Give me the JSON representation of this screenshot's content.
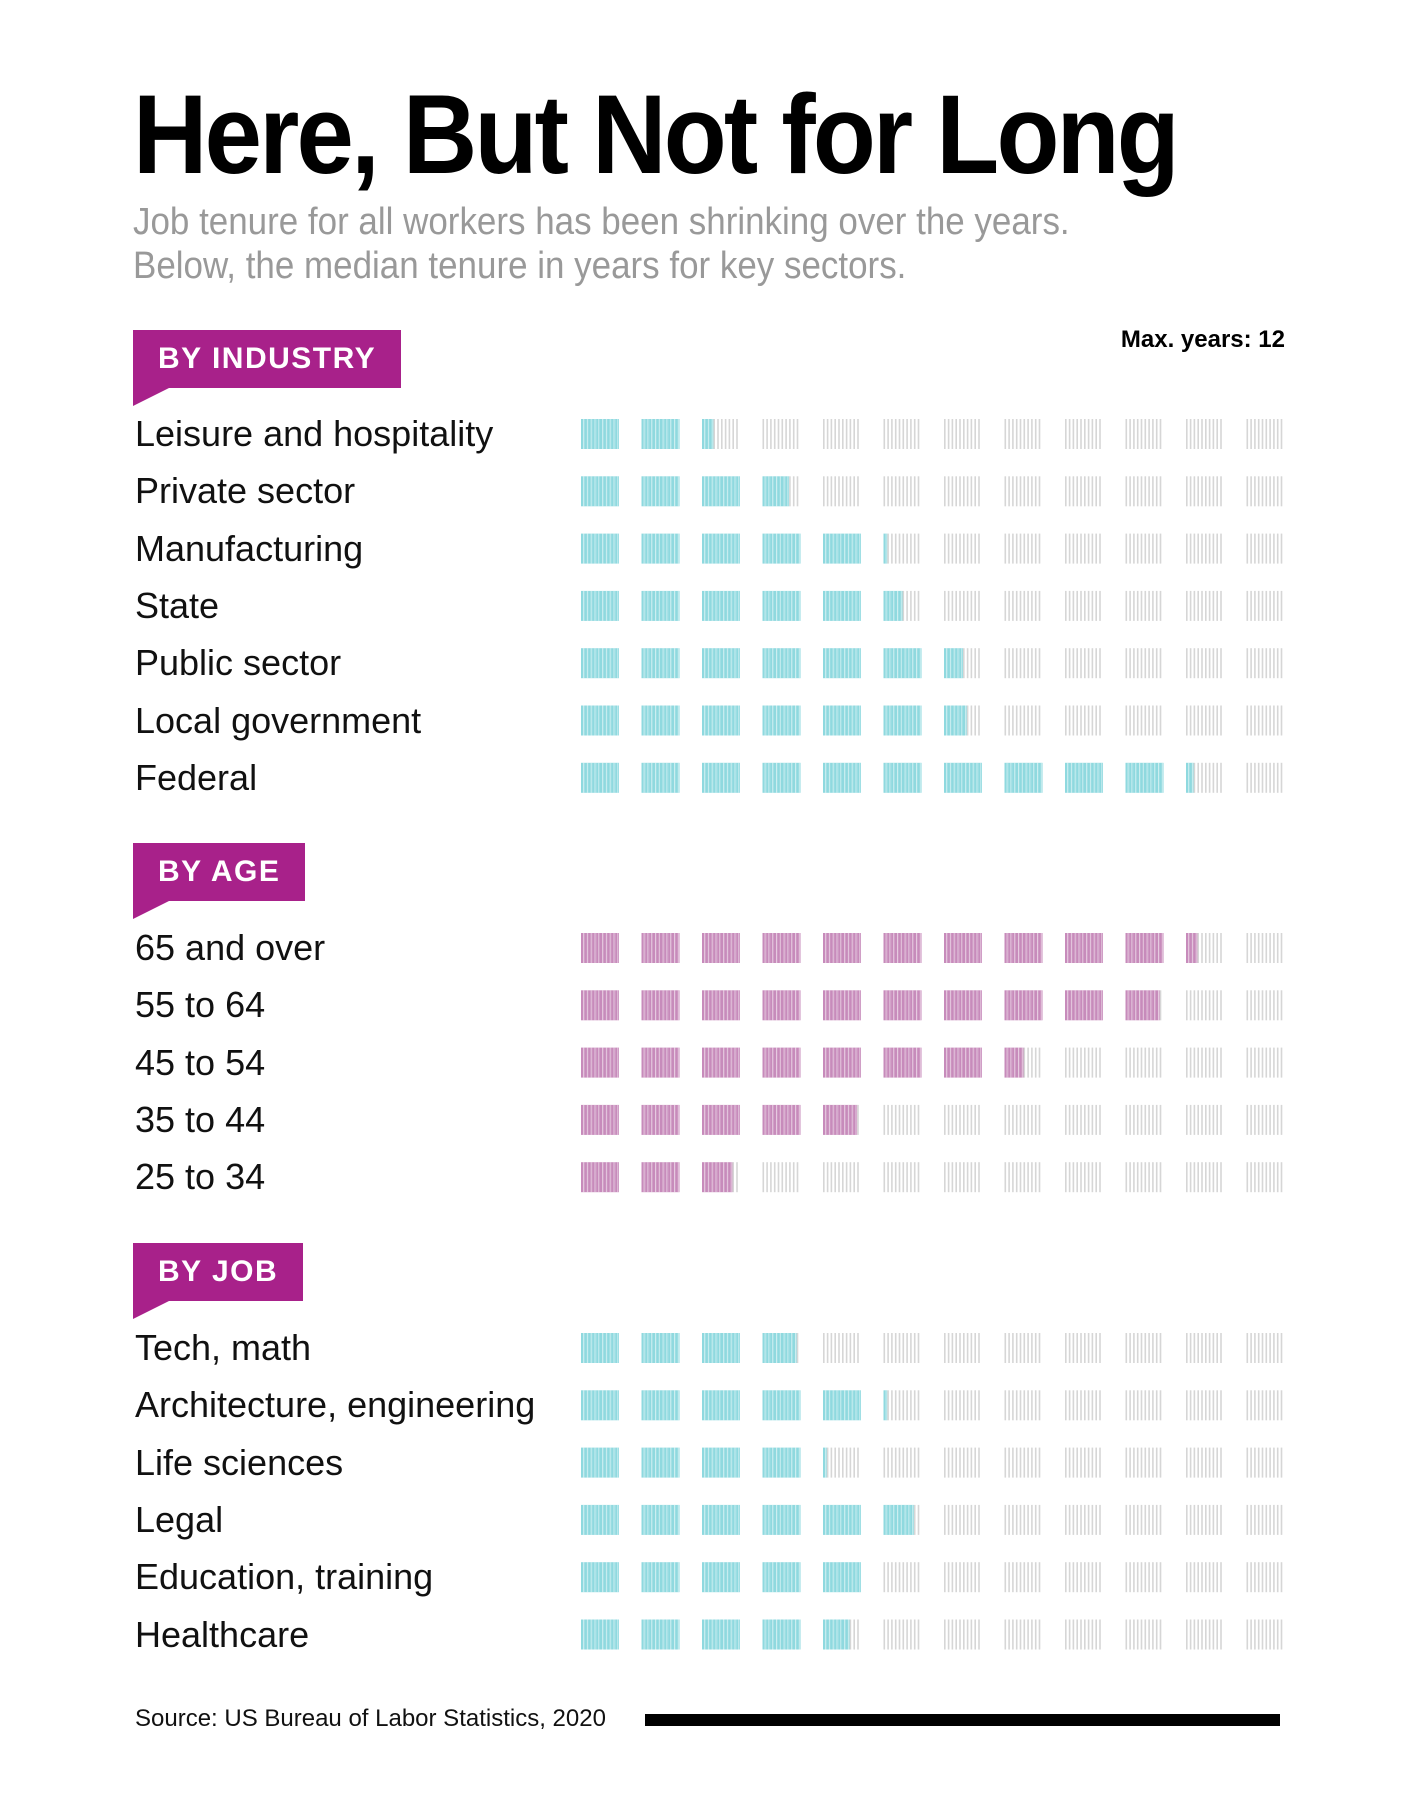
{
  "title": "Here, But Not for Long",
  "subtitle_line1": "Job tenure for all workers has been shrinking over the years.",
  "subtitle_line2": "Below, the median tenure in years for key sectors.",
  "max_label": "Max. years: 12",
  "source": "Source: US Bureau of Labor Statistics, 2020",
  "colors": {
    "industry": "#8fd9df",
    "age": "#c78bbb",
    "job": "#8fd9df",
    "empty": "#d6d6d6",
    "badge": "#a8218a"
  },
  "chart_data": {
    "type": "bar",
    "title": "Here, But Not for Long",
    "subtitle": "Median job tenure in years for key sectors",
    "max_years": 12,
    "unit": "years",
    "groups": [
      {
        "name": "BY INDUSTRY",
        "color_key": "industry",
        "categories": [
          "Leisure and hospitality",
          "Private sector",
          "Manufacturing",
          "State",
          "Public sector",
          "Local government",
          "Federal"
        ],
        "values": [
          2.3,
          3.7,
          5.1,
          5.5,
          6.5,
          6.6,
          10.2
        ]
      },
      {
        "name": "BY AGE",
        "color_key": "age",
        "categories": [
          "65 and over",
          "55 to 64",
          "45 to 54",
          "35 to 44",
          "25 to 34"
        ],
        "values": [
          10.3,
          9.9,
          7.5,
          4.9,
          2.8
        ]
      },
      {
        "name": "BY JOB",
        "color_key": "job",
        "categories": [
          "Tech, math",
          "Architecture, engineering",
          "Life sciences",
          "Legal",
          "Education, training",
          "Healthcare"
        ],
        "values": [
          3.9,
          5.1,
          4.1,
          5.8,
          5.0,
          4.7
        ]
      }
    ]
  }
}
